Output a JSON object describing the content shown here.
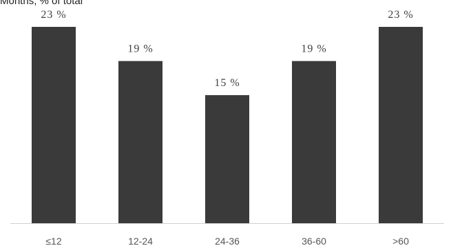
{
  "subtitle": "Months, % of total",
  "colors": {
    "bar": "#3a3a3a",
    "axis": "#d0d0d0",
    "label": "#404040",
    "tick": "#555555"
  },
  "chart_data": {
    "type": "bar",
    "categories": [
      "≤12",
      "12-24",
      "24-36",
      "36-60",
      ">60"
    ],
    "values": [
      23,
      19,
      15,
      19,
      23
    ],
    "data_labels": [
      "23 %",
      "19 %",
      "15 %",
      "19 %",
      "23 %"
    ],
    "unit": "%",
    "ylim": [
      0,
      30
    ],
    "grid": false,
    "legend": "none"
  }
}
